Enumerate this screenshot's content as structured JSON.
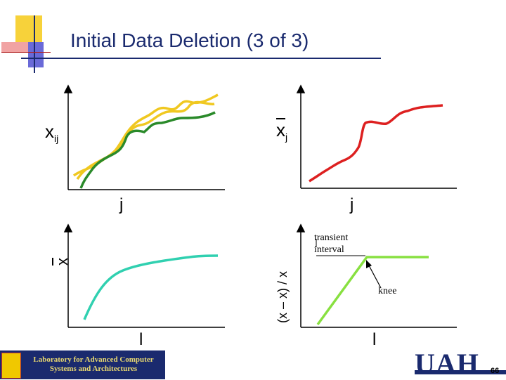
{
  "slide": {
    "title": "Initial Data Deletion (3 of 3)",
    "page_number": "66"
  },
  "footer": {
    "lab_line1": "Laboratory for Advanced Computer",
    "lab_line2": "Systems and Architectures",
    "university_logo_text": "UAH"
  },
  "panels": {
    "top_left": {
      "y_label": "x",
      "y_sub": "ij",
      "x_label": "j"
    },
    "top_right": {
      "y_label": "x",
      "y_sub": "j",
      "x_label": "j"
    },
    "bottom_left": {
      "y_label": "x",
      "x_label": "l"
    },
    "bottom_right": {
      "y_label": "(x – x) / x",
      "x_label": "l",
      "annotation_transient": "transient interval",
      "annotation_knee": "knee"
    }
  },
  "colors": {
    "title": "#1a2a6e",
    "yellow_curve": "#f0c820",
    "green_curve": "#2a8a2a",
    "red_curve": "#dd2020",
    "teal_curve": "#30d0b0",
    "lightgreen_curve": "#88e040"
  },
  "chart_data": [
    {
      "type": "line",
      "panel": "top_left",
      "xlabel": "j",
      "ylabel": "xij",
      "series": [
        {
          "values": [
            0.05,
            0.3,
            0.45,
            0.75,
            0.85,
            0.9,
            0.95
          ]
        },
        {
          "values": [
            0.1,
            0.25,
            0.55,
            0.8,
            0.85,
            0.88,
            0.92
          ]
        },
        {
          "values": [
            0.0,
            0.2,
            0.4,
            0.6,
            0.7,
            0.75,
            0.78
          ]
        }
      ]
    },
    {
      "type": "line",
      "panel": "top_right",
      "xlabel": "j",
      "ylabel": "xj",
      "series": [
        {
          "values": [
            0.1,
            0.25,
            0.35,
            0.7,
            0.75,
            0.95,
            0.97
          ]
        }
      ]
    },
    {
      "type": "line",
      "panel": "bottom_left",
      "xlabel": "l",
      "ylabel": "x",
      "series": [
        {
          "values": [
            0.0,
            0.4,
            0.6,
            0.75,
            0.85,
            0.95,
            0.95
          ]
        }
      ]
    },
    {
      "type": "line",
      "panel": "bottom_right",
      "xlabel": "l",
      "ylabel": "(x – x) / x",
      "series": [
        {
          "values": [
            0.0,
            0.5,
            1.0,
            1.0,
            1.0
          ]
        }
      ]
    }
  ]
}
